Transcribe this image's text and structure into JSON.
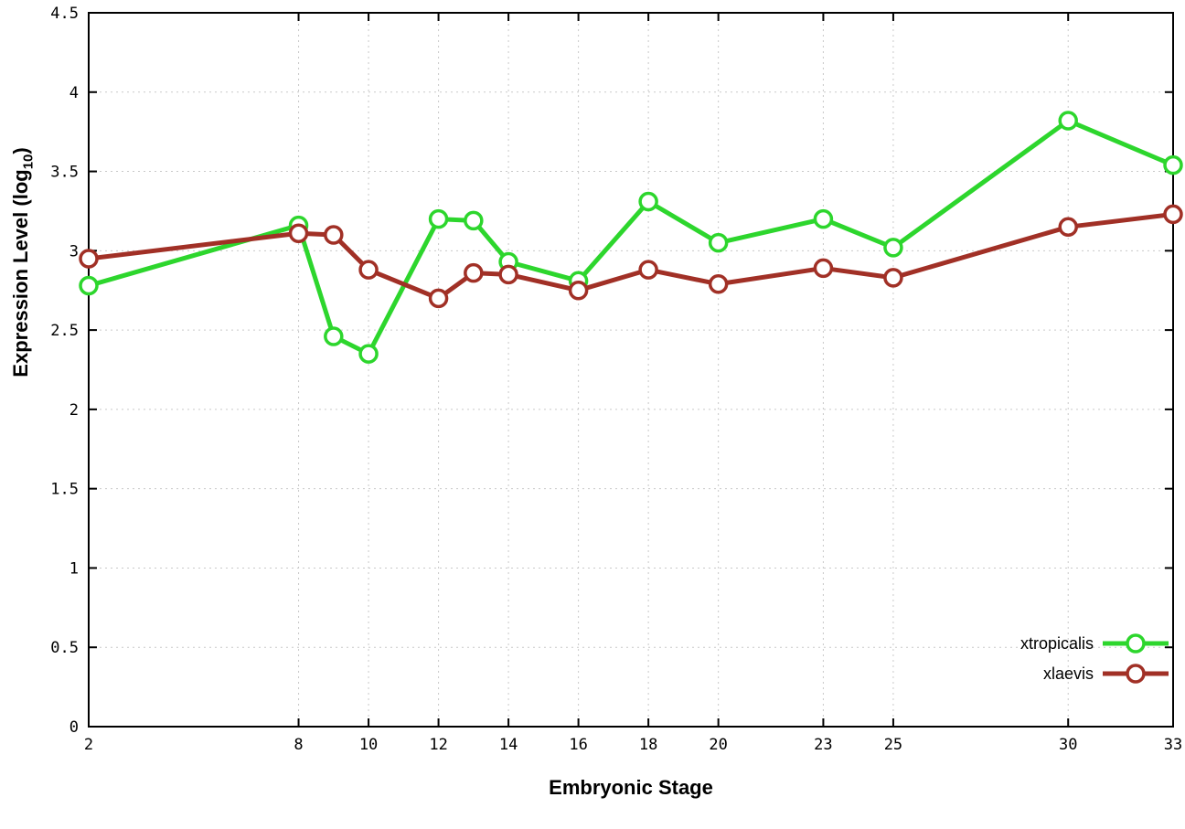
{
  "labels": {
    "ylabel_pre": "Expression Level (log",
    "ylabel_sub": "10",
    "ylabel_post": ")"
  },
  "chart_data": {
    "type": "line",
    "title": "",
    "xlabel": "Embryonic Stage",
    "ylabel": "Expression Level (log10)",
    "xlim": [
      2,
      33
    ],
    "ylim": [
      0,
      4.5
    ],
    "x_ticks": [
      2,
      8,
      10,
      12,
      14,
      16,
      18,
      20,
      23,
      25,
      30,
      33
    ],
    "y_ticks": [
      0,
      0.5,
      1,
      1.5,
      2,
      2.5,
      3,
      3.5,
      4,
      4.5
    ],
    "grid": true,
    "legend_position": "bottom-right",
    "x": [
      2,
      8,
      9,
      10,
      12,
      13,
      14,
      16,
      18,
      20,
      23,
      25,
      30,
      33
    ],
    "series": [
      {
        "name": "xtropicalis",
        "color": "#2dd62d",
        "values": [
          2.78,
          3.16,
          2.46,
          2.35,
          3.2,
          3.19,
          2.93,
          2.81,
          3.31,
          3.05,
          3.2,
          3.02,
          3.82,
          3.54
        ]
      },
      {
        "name": "xlaevis",
        "color": "#a13026",
        "values": [
          2.95,
          3.11,
          3.1,
          2.88,
          2.7,
          2.86,
          2.85,
          2.75,
          2.88,
          2.79,
          2.89,
          2.83,
          3.15,
          3.23
        ]
      }
    ]
  }
}
